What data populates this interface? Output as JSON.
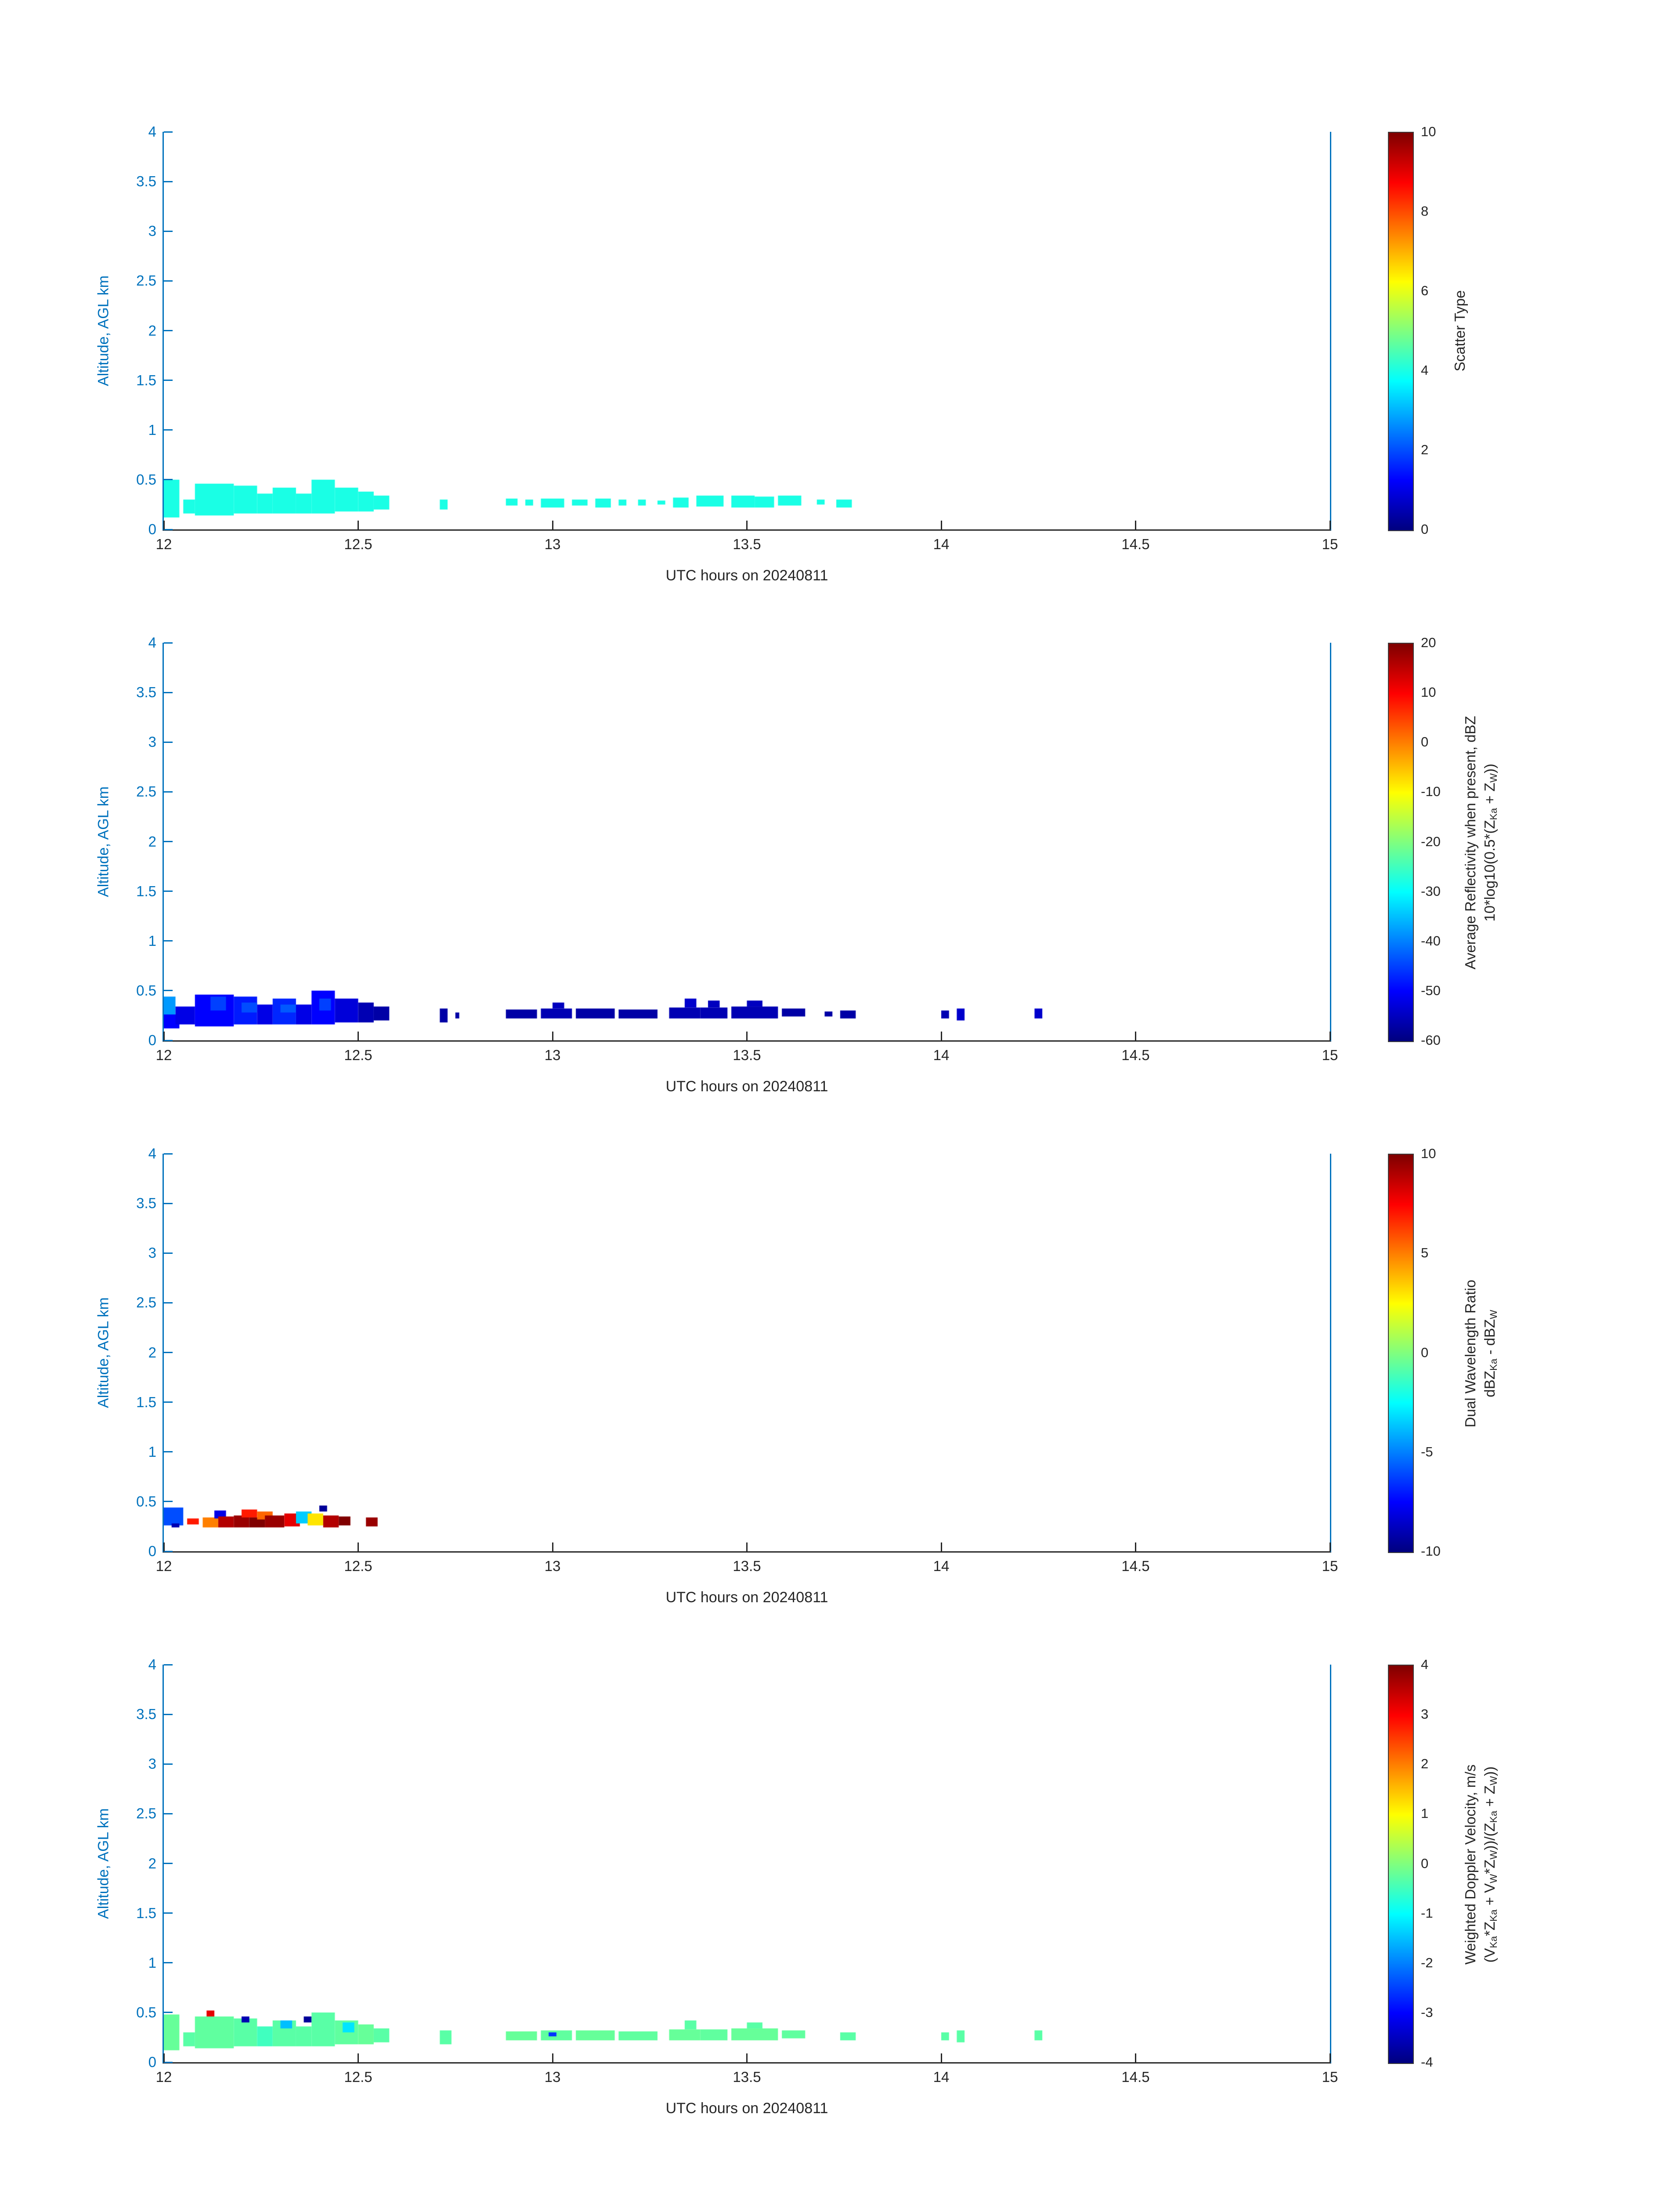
{
  "figure": {
    "background": "#ffffff",
    "colors": {
      "y_axis": "#0072BD",
      "x_axis": "#262626",
      "colorbar_border": "#3a3a3a"
    }
  },
  "chart_data": {
    "type": "heatmap",
    "colormap": "jet",
    "grid": false,
    "common": {
      "xlabel": "UTC hours on 20240811",
      "ylabel": "Altitude, AGL km",
      "xlim": [
        12,
        15
      ],
      "ylim": [
        0,
        4
      ],
      "xticks": [
        12,
        12.5,
        13,
        13.5,
        14,
        14.5,
        15
      ],
      "yticks": [
        0,
        0.5,
        1,
        1.5,
        2,
        2.5,
        3,
        3.5,
        4
      ]
    },
    "panels": [
      {
        "name": "scatter-type",
        "colorbar": {
          "min": 0,
          "max": 10,
          "ticks": [
            0,
            2,
            4,
            6,
            8,
            10
          ],
          "label_lines": [
            [
              {
                "t": "Scatter Type"
              }
            ]
          ]
        },
        "cells": [
          [
            12.0,
            12.04,
            0.12,
            0.5,
            4
          ],
          [
            12.05,
            12.08,
            0.16,
            0.3,
            4
          ],
          [
            12.08,
            12.18,
            0.14,
            0.46,
            4
          ],
          [
            12.18,
            12.24,
            0.16,
            0.44,
            4
          ],
          [
            12.24,
            12.28,
            0.16,
            0.36,
            4
          ],
          [
            12.28,
            12.34,
            0.16,
            0.42,
            4
          ],
          [
            12.34,
            12.38,
            0.16,
            0.36,
            4
          ],
          [
            12.38,
            12.44,
            0.16,
            0.5,
            4
          ],
          [
            12.44,
            12.5,
            0.18,
            0.42,
            4
          ],
          [
            12.5,
            12.54,
            0.18,
            0.38,
            4
          ],
          [
            12.54,
            12.58,
            0.2,
            0.34,
            4
          ],
          [
            12.71,
            12.73,
            0.2,
            0.3,
            4
          ],
          [
            12.88,
            12.91,
            0.24,
            0.31,
            4
          ],
          [
            12.93,
            12.95,
            0.24,
            0.3,
            4
          ],
          [
            12.97,
            13.03,
            0.22,
            0.31,
            4
          ],
          [
            13.05,
            13.09,
            0.24,
            0.3,
            4
          ],
          [
            13.11,
            13.15,
            0.22,
            0.31,
            4
          ],
          [
            13.17,
            13.19,
            0.24,
            0.3,
            4
          ],
          [
            13.22,
            13.24,
            0.24,
            0.3,
            4
          ],
          [
            13.27,
            13.29,
            0.25,
            0.29,
            4
          ],
          [
            13.31,
            13.35,
            0.22,
            0.32,
            4
          ],
          [
            13.37,
            13.44,
            0.23,
            0.34,
            4
          ],
          [
            13.46,
            13.52,
            0.22,
            0.34,
            4
          ],
          [
            13.52,
            13.57,
            0.22,
            0.33,
            4
          ],
          [
            13.58,
            13.64,
            0.24,
            0.34,
            4
          ],
          [
            13.68,
            13.7,
            0.25,
            0.3,
            4
          ],
          [
            13.73,
            13.77,
            0.22,
            0.3,
            4
          ]
        ]
      },
      {
        "name": "average-reflectivity",
        "colorbar": {
          "min": -60,
          "max": 20,
          "ticks": [
            -60,
            -50,
            -40,
            -30,
            -20,
            -10,
            0,
            10,
            20
          ],
          "label_lines": [
            [
              {
                "t": "Average Reflectivity when present, dBZ"
              }
            ],
            [
              {
                "t": "10*log10(0.5*(Z"
              },
              {
                "t": "Ka",
                "sub": true
              },
              {
                "t": " + Z"
              },
              {
                "t": "W",
                "sub": true
              },
              {
                "t": "))"
              }
            ]
          ]
        },
        "cells": [
          [
            12.0,
            12.03,
            0.24,
            0.44,
            -38
          ],
          [
            12.0,
            12.04,
            0.12,
            0.26,
            -50
          ],
          [
            12.03,
            12.08,
            0.16,
            0.34,
            -52
          ],
          [
            12.08,
            12.18,
            0.14,
            0.46,
            -50
          ],
          [
            12.12,
            12.16,
            0.3,
            0.44,
            -45
          ],
          [
            12.18,
            12.24,
            0.16,
            0.44,
            -48
          ],
          [
            12.2,
            12.24,
            0.28,
            0.38,
            -44
          ],
          [
            12.24,
            12.28,
            0.16,
            0.36,
            -52
          ],
          [
            12.28,
            12.34,
            0.16,
            0.42,
            -47
          ],
          [
            12.3,
            12.34,
            0.28,
            0.36,
            -43
          ],
          [
            12.34,
            12.38,
            0.16,
            0.36,
            -52
          ],
          [
            12.38,
            12.44,
            0.16,
            0.5,
            -50
          ],
          [
            12.4,
            12.43,
            0.3,
            0.42,
            -45
          ],
          [
            12.44,
            12.5,
            0.18,
            0.42,
            -53
          ],
          [
            12.5,
            12.54,
            0.18,
            0.38,
            -56
          ],
          [
            12.54,
            12.58,
            0.2,
            0.34,
            -57
          ],
          [
            12.71,
            12.73,
            0.18,
            0.32,
            -57
          ],
          [
            12.75,
            12.76,
            0.22,
            0.28,
            -57
          ],
          [
            12.88,
            12.96,
            0.22,
            0.31,
            -57
          ],
          [
            12.97,
            13.05,
            0.22,
            0.32,
            -56
          ],
          [
            13.0,
            13.03,
            0.32,
            0.38,
            -55
          ],
          [
            13.06,
            13.16,
            0.22,
            0.32,
            -57
          ],
          [
            13.17,
            13.27,
            0.22,
            0.31,
            -57
          ],
          [
            13.3,
            13.38,
            0.22,
            0.33,
            -56
          ],
          [
            13.34,
            13.37,
            0.33,
            0.42,
            -54
          ],
          [
            13.38,
            13.45,
            0.22,
            0.33,
            -56
          ],
          [
            13.4,
            13.43,
            0.33,
            0.4,
            -55
          ],
          [
            13.46,
            13.58,
            0.22,
            0.34,
            -56
          ],
          [
            13.5,
            13.54,
            0.34,
            0.4,
            -55
          ],
          [
            13.59,
            13.65,
            0.24,
            0.32,
            -57
          ],
          [
            13.7,
            13.72,
            0.24,
            0.29,
            -57
          ],
          [
            13.74,
            13.78,
            0.22,
            0.3,
            -57
          ],
          [
            14.0,
            14.02,
            0.22,
            0.3,
            -56
          ],
          [
            14.04,
            14.06,
            0.2,
            0.32,
            -54
          ],
          [
            14.24,
            14.26,
            0.22,
            0.32,
            -54
          ]
        ]
      },
      {
        "name": "dual-wavelength-ratio",
        "colorbar": {
          "min": -10,
          "max": 10,
          "ticks": [
            -10,
            -5,
            0,
            5,
            10
          ],
          "label_lines": [
            [
              {
                "t": "Dual Wavelength Ratio"
              }
            ],
            [
              {
                "t": "dBZ"
              },
              {
                "t": "Ka",
                "sub": true
              },
              {
                "t": " - dBZ"
              },
              {
                "t": "W",
                "sub": true
              }
            ]
          ]
        },
        "cells": [
          [
            12.0,
            12.05,
            0.26,
            0.44,
            -6
          ],
          [
            12.02,
            12.04,
            0.24,
            0.28,
            -9
          ],
          [
            12.06,
            12.09,
            0.27,
            0.33,
            7
          ],
          [
            12.1,
            12.14,
            0.24,
            0.34,
            5
          ],
          [
            12.13,
            12.16,
            0.33,
            0.41,
            -8
          ],
          [
            12.14,
            12.18,
            0.24,
            0.35,
            9
          ],
          [
            12.18,
            12.22,
            0.24,
            0.36,
            9.5
          ],
          [
            12.2,
            12.24,
            0.34,
            0.42,
            7
          ],
          [
            12.22,
            12.26,
            0.24,
            0.34,
            10
          ],
          [
            12.24,
            12.28,
            0.32,
            0.4,
            5.5
          ],
          [
            12.26,
            12.31,
            0.24,
            0.36,
            9.5
          ],
          [
            12.31,
            12.35,
            0.25,
            0.38,
            8
          ],
          [
            12.34,
            12.38,
            0.28,
            0.4,
            -3.5
          ],
          [
            12.37,
            12.41,
            0.26,
            0.38,
            3
          ],
          [
            12.4,
            12.42,
            0.4,
            0.46,
            -9.5
          ],
          [
            12.41,
            12.45,
            0.24,
            0.36,
            9
          ],
          [
            12.45,
            12.48,
            0.26,
            0.35,
            10
          ],
          [
            12.52,
            12.55,
            0.25,
            0.34,
            9.5
          ]
        ]
      },
      {
        "name": "weighted-doppler-velocity",
        "colorbar": {
          "min": -4,
          "max": 4,
          "ticks": [
            -4,
            -3,
            -2,
            -1,
            0,
            1,
            2,
            3,
            4
          ],
          "label_lines": [
            [
              {
                "t": "Weighted Doppler Velocity, m/s"
              }
            ],
            [
              {
                "t": "(V"
              },
              {
                "t": "Ka",
                "sub": true
              },
              {
                "t": "*Z"
              },
              {
                "t": "Ka",
                "sub": true
              },
              {
                "t": " + V"
              },
              {
                "t": "W",
                "sub": true
              },
              {
                "t": "*Z"
              },
              {
                "t": "W",
                "sub": true
              },
              {
                "t": "))/(Z"
              },
              {
                "t": "Ka",
                "sub": true
              },
              {
                "t": " + Z"
              },
              {
                "t": "W",
                "sub": true
              },
              {
                "t": "))"
              }
            ]
          ]
        },
        "cells": [
          [
            12.0,
            12.04,
            0.12,
            0.48,
            -0.2
          ],
          [
            12.05,
            12.08,
            0.16,
            0.3,
            -0.3
          ],
          [
            12.08,
            12.18,
            0.14,
            0.46,
            -0.25
          ],
          [
            12.11,
            12.13,
            0.46,
            0.52,
            3.2
          ],
          [
            12.18,
            12.24,
            0.16,
            0.44,
            -0.3
          ],
          [
            12.2,
            12.22,
            0.4,
            0.46,
            -3.6
          ],
          [
            12.24,
            12.28,
            0.16,
            0.36,
            -0.5
          ],
          [
            12.28,
            12.34,
            0.16,
            0.42,
            -0.3
          ],
          [
            12.3,
            12.33,
            0.34,
            0.42,
            -1.5
          ],
          [
            12.34,
            12.38,
            0.16,
            0.36,
            -0.3
          ],
          [
            12.36,
            12.38,
            0.4,
            0.46,
            -3.8
          ],
          [
            12.38,
            12.44,
            0.16,
            0.5,
            -0.3
          ],
          [
            12.44,
            12.5,
            0.18,
            0.42,
            -0.25
          ],
          [
            12.46,
            12.49,
            0.3,
            0.4,
            -1.2
          ],
          [
            12.5,
            12.54,
            0.18,
            0.38,
            -0.2
          ],
          [
            12.54,
            12.58,
            0.2,
            0.34,
            -0.3
          ],
          [
            12.71,
            12.74,
            0.18,
            0.32,
            -0.3
          ],
          [
            12.88,
            12.96,
            0.22,
            0.31,
            -0.2
          ],
          [
            12.97,
            13.05,
            0.22,
            0.32,
            -0.25
          ],
          [
            12.99,
            13.01,
            0.26,
            0.3,
            -2.6
          ],
          [
            13.06,
            13.16,
            0.22,
            0.32,
            -0.2
          ],
          [
            13.17,
            13.27,
            0.22,
            0.31,
            -0.25
          ],
          [
            13.3,
            13.38,
            0.22,
            0.33,
            -0.2
          ],
          [
            13.34,
            13.37,
            0.33,
            0.42,
            -0.3
          ],
          [
            13.38,
            13.45,
            0.22,
            0.33,
            -0.25
          ],
          [
            13.46,
            13.58,
            0.22,
            0.34,
            -0.2
          ],
          [
            13.5,
            13.54,
            0.34,
            0.4,
            -0.3
          ],
          [
            13.59,
            13.65,
            0.24,
            0.32,
            -0.25
          ],
          [
            13.74,
            13.78,
            0.22,
            0.3,
            -0.3
          ],
          [
            14.0,
            14.02,
            0.22,
            0.3,
            -0.3
          ],
          [
            14.04,
            14.06,
            0.2,
            0.32,
            -0.3
          ],
          [
            14.24,
            14.26,
            0.22,
            0.32,
            -0.3
          ]
        ]
      }
    ]
  }
}
